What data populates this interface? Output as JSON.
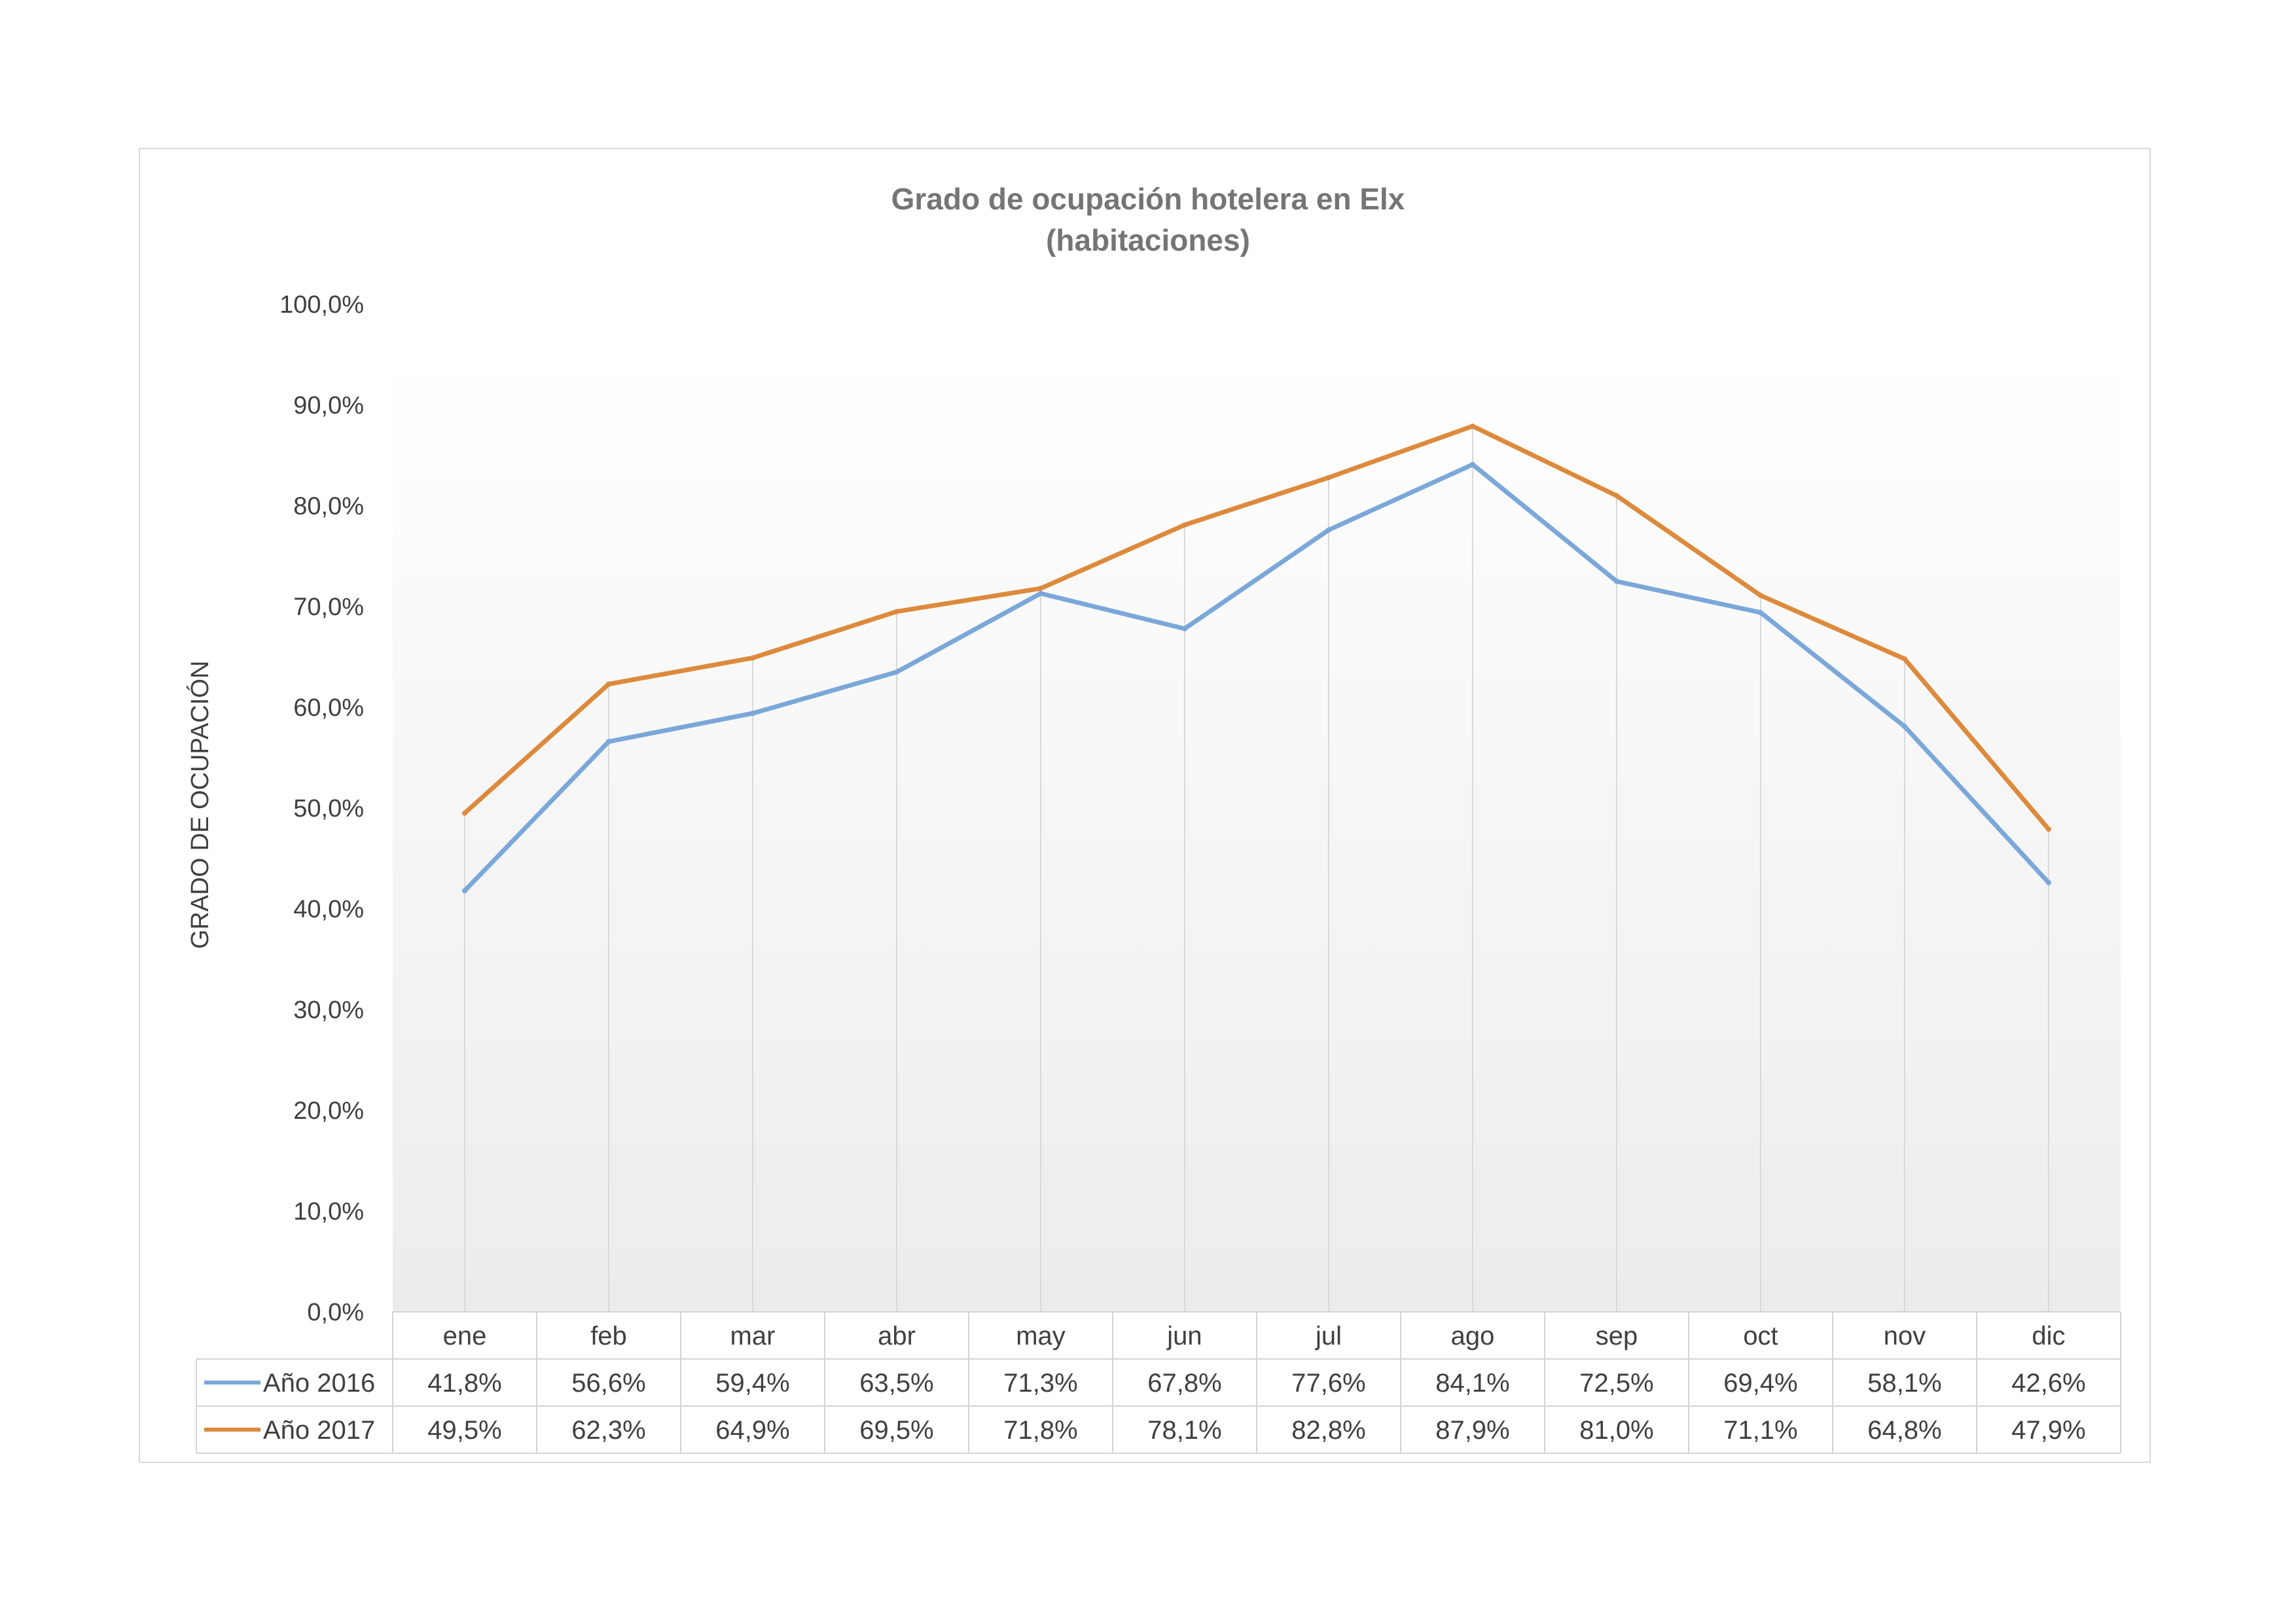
{
  "chart_data": {
    "type": "line",
    "title": "Grado de ocupación hotelera en Elx",
    "subtitle": "(habitaciones)",
    "ylabel": "GRADO DE OCUPACIÓN",
    "xlabel": "",
    "ylim": [
      0,
      100
    ],
    "y_ticks": [
      "0,0%",
      "10,0%",
      "20,0%",
      "30,0%",
      "40,0%",
      "50,0%",
      "60,0%",
      "70,0%",
      "80,0%",
      "90,0%",
      "100,0%"
    ],
    "grid": "vertical",
    "legend": "data-table",
    "categories": [
      "ene",
      "feb",
      "mar",
      "abr",
      "may",
      "jun",
      "jul",
      "ago",
      "sep",
      "oct",
      "nov",
      "dic"
    ],
    "series": [
      {
        "name": "Año 2016",
        "color": "#7ba7d9",
        "values": [
          41.8,
          56.6,
          59.4,
          63.5,
          71.3,
          67.8,
          77.6,
          84.1,
          72.5,
          69.4,
          58.1,
          42.6
        ],
        "labels": [
          "41,8%",
          "56,6%",
          "59,4%",
          "63,5%",
          "71,3%",
          "67,8%",
          "77,6%",
          "84,1%",
          "72,5%",
          "69,4%",
          "58,1%",
          "42,6%"
        ]
      },
      {
        "name": "Año 2017",
        "color": "#dd8a3c",
        "values": [
          49.5,
          62.3,
          64.9,
          69.5,
          71.8,
          78.1,
          82.8,
          87.9,
          81.0,
          71.1,
          64.8,
          47.9
        ],
        "labels": [
          "49,5%",
          "62,3%",
          "64,9%",
          "69,5%",
          "71,8%",
          "78,1%",
          "82,8%",
          "87,9%",
          "81,0%",
          "71,1%",
          "64,8%",
          "47,9%"
        ]
      }
    ]
  }
}
